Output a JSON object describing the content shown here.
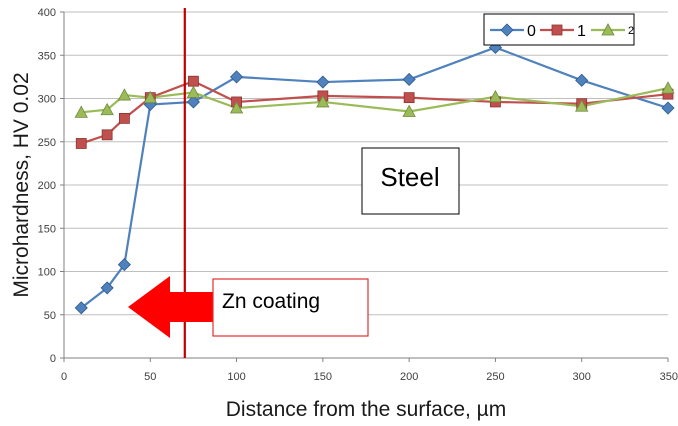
{
  "chart_data": {
    "type": "line",
    "xlabel": "Distance from the surface, µm",
    "ylabel": "Microhardness, HV 0.02",
    "xlim": [
      0,
      350
    ],
    "ylim": [
      0,
      400
    ],
    "x_ticks": [
      "0",
      "50",
      "100",
      "150",
      "200",
      "250",
      "300",
      "350"
    ],
    "y_ticks": [
      "0",
      "50",
      "100",
      "150",
      "200",
      "250",
      "300",
      "350",
      "400"
    ],
    "grid": "horizontal major gridlines",
    "legend_position": "top-right",
    "series": [
      {
        "name": "0",
        "color": "#4F81BD",
        "marker": "diamond",
        "x": [
          10,
          25,
          35,
          50,
          75,
          100,
          150,
          200,
          250,
          300,
          350
        ],
        "y": [
          58,
          81,
          108,
          293,
          296,
          325,
          319,
          322,
          359,
          321,
          289
        ]
      },
      {
        "name": "1",
        "color": "#C0504D",
        "marker": "square",
        "x": [
          10,
          25,
          35,
          50,
          75,
          100,
          150,
          200,
          250,
          300,
          350
        ],
        "y": [
          248,
          258,
          277,
          301,
          320,
          296,
          303,
          301,
          296,
          294,
          305
        ]
      },
      {
        "name": "2",
        "color": "#9BBB59",
        "marker": "triangle",
        "x": [
          10,
          25,
          35,
          50,
          75,
          100,
          150,
          200,
          250,
          300,
          350
        ],
        "y": [
          284,
          287,
          304,
          301,
          307,
          289,
          296,
          285,
          302,
          291,
          312
        ]
      }
    ],
    "annotations": {
      "boundary_line": {
        "x": 70,
        "color": "#C00000"
      },
      "steel_label": "Steel",
      "coating_label": "Zn coating",
      "arrow_color": "#FF0000"
    }
  }
}
